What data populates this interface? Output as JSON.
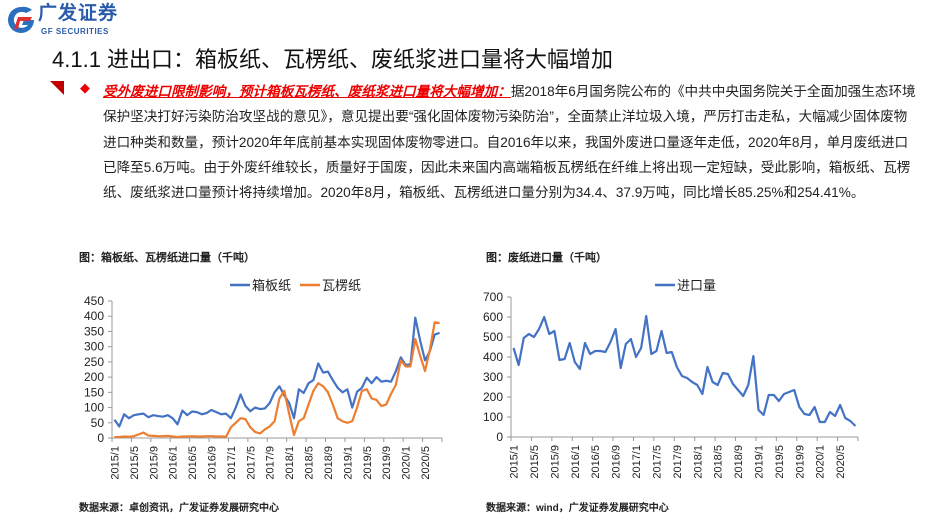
{
  "header": {
    "logo_cn": "广发证券",
    "logo_en": "GF SECURITIES",
    "title": "4.1.1 进出口：箱板纸、瓦楞纸、废纸浆进口量将大幅增加"
  },
  "body": {
    "highlight": "受外废进口限制影响，预计箱板瓦楞纸、废纸浆进口量将大幅增加：",
    "text": "据2018年6月国务院公布的《中共中央国务院关于全面加强生态环境保护坚决打好污染防治攻坚战的意见》，意见提出要“强化固体废物污染防治”，全面禁止洋垃圾入境，严厉打击走私，大幅减少固体废物进口种类和数量，预计2020年年底前基本实现固体废物零进口。自2016年以来，我国外废进口量逐年走低，2020年8月，单月废纸进口已降至5.6万吨。由于外废纤维较长，质量好于国废，因此未来国内高端箱板瓦楞纸在纤维上将出现一定短缺，受此影响，箱板纸、瓦楞纸、废纸浆进口量预计将持续增加。2020年8月，箱板纸、瓦楞纸进口量分别为34.4、37.9万吨，同比增长85.25%和254.41%。"
  },
  "captions": {
    "left_title": "图：箱板纸、瓦楞纸进口量（千吨）",
    "right_title": "图：废纸进口量（千吨）",
    "left_source": "数据来源：卓创资讯，广发证券发展研究中心",
    "right_source": "数据来源：wind，广发证券发展研究中心"
  },
  "chart_data": [
    {
      "type": "line",
      "title": "图：箱板纸、瓦楞纸进口量（千吨）",
      "ylim": [
        0,
        450
      ],
      "yticks": [
        0,
        50,
        100,
        150,
        200,
        250,
        300,
        350,
        400,
        450
      ],
      "x_start": "2015/1",
      "x_end": "2020/8",
      "xticks": [
        "2015/1",
        "2015/5",
        "2015/9",
        "2016/1",
        "2016/5",
        "2016/9",
        "2017/1",
        "2017/5",
        "2017/9",
        "2018/1",
        "2018/5",
        "2018/9",
        "2019/1",
        "2019/5",
        "2019/9",
        "2020/1",
        "2020/5"
      ],
      "legend": "top-center",
      "series": [
        {
          "name": "箱板纸",
          "color": "#4472c4",
          "values": [
            60,
            38,
            78,
            65,
            75,
            78,
            80,
            68,
            75,
            72,
            70,
            75,
            65,
            45,
            90,
            75,
            87,
            85,
            78,
            82,
            92,
            85,
            78,
            80,
            65,
            100,
            143,
            105,
            88,
            100,
            95,
            97,
            115,
            150,
            170,
            140,
            115,
            65,
            160,
            148,
            180,
            190,
            245,
            215,
            218,
            190,
            165,
            150,
            160,
            100,
            152,
            165,
            198,
            180,
            200,
            185,
            188,
            185,
            220,
            265,
            240,
            242,
            395,
            320,
            255,
            285,
            340,
            345
          ]
        },
        {
          "name": "瓦楞纸",
          "color": "#ed7d31",
          "values": [
            3,
            3,
            5,
            4,
            6,
            12,
            18,
            8,
            7,
            6,
            6,
            7,
            5,
            3,
            5,
            5,
            6,
            5,
            5,
            6,
            6,
            5,
            5,
            4,
            35,
            50,
            65,
            62,
            35,
            20,
            15,
            28,
            38,
            55,
            130,
            155,
            80,
            10,
            55,
            65,
            110,
            155,
            180,
            170,
            150,
            110,
            65,
            55,
            50,
            55,
            100,
            155,
            160,
            130,
            125,
            105,
            110,
            145,
            175,
            255,
            235,
            235,
            325,
            270,
            220,
            290,
            380,
            378
          ]
        }
      ]
    },
    {
      "type": "line",
      "title": "图：废纸进口量（千吨）",
      "ylim": [
        0,
        700
      ],
      "yticks": [
        0,
        100,
        200,
        300,
        400,
        500,
        600,
        700
      ],
      "x_start": "2015/1",
      "x_end": "2020/8",
      "xticks": [
        "2015/1",
        "2015/5",
        "2015/9",
        "2016/1",
        "2016/5",
        "2016/9",
        "2017/1",
        "2017/5",
        "2017/9",
        "2018/1",
        "2018/5",
        "2018/9",
        "2019/1",
        "2019/5",
        "2019/9",
        "2020/1",
        "2020/5"
      ],
      "legend": "top-center",
      "series": [
        {
          "name": "进口量",
          "color": "#4472c4",
          "values": [
            445,
            360,
            495,
            515,
            500,
            540,
            600,
            515,
            530,
            385,
            390,
            470,
            375,
            340,
            470,
            415,
            430,
            430,
            425,
            475,
            540,
            345,
            465,
            490,
            400,
            445,
            605,
            415,
            430,
            530,
            420,
            425,
            350,
            305,
            295,
            275,
            260,
            215,
            350,
            275,
            260,
            320,
            315,
            265,
            235,
            205,
            260,
            405,
            135,
            110,
            210,
            210,
            180,
            215,
            225,
            235,
            150,
            115,
            110,
            150,
            75,
            75,
            125,
            105,
            160,
            95,
            80,
            55
          ]
        }
      ]
    }
  ]
}
